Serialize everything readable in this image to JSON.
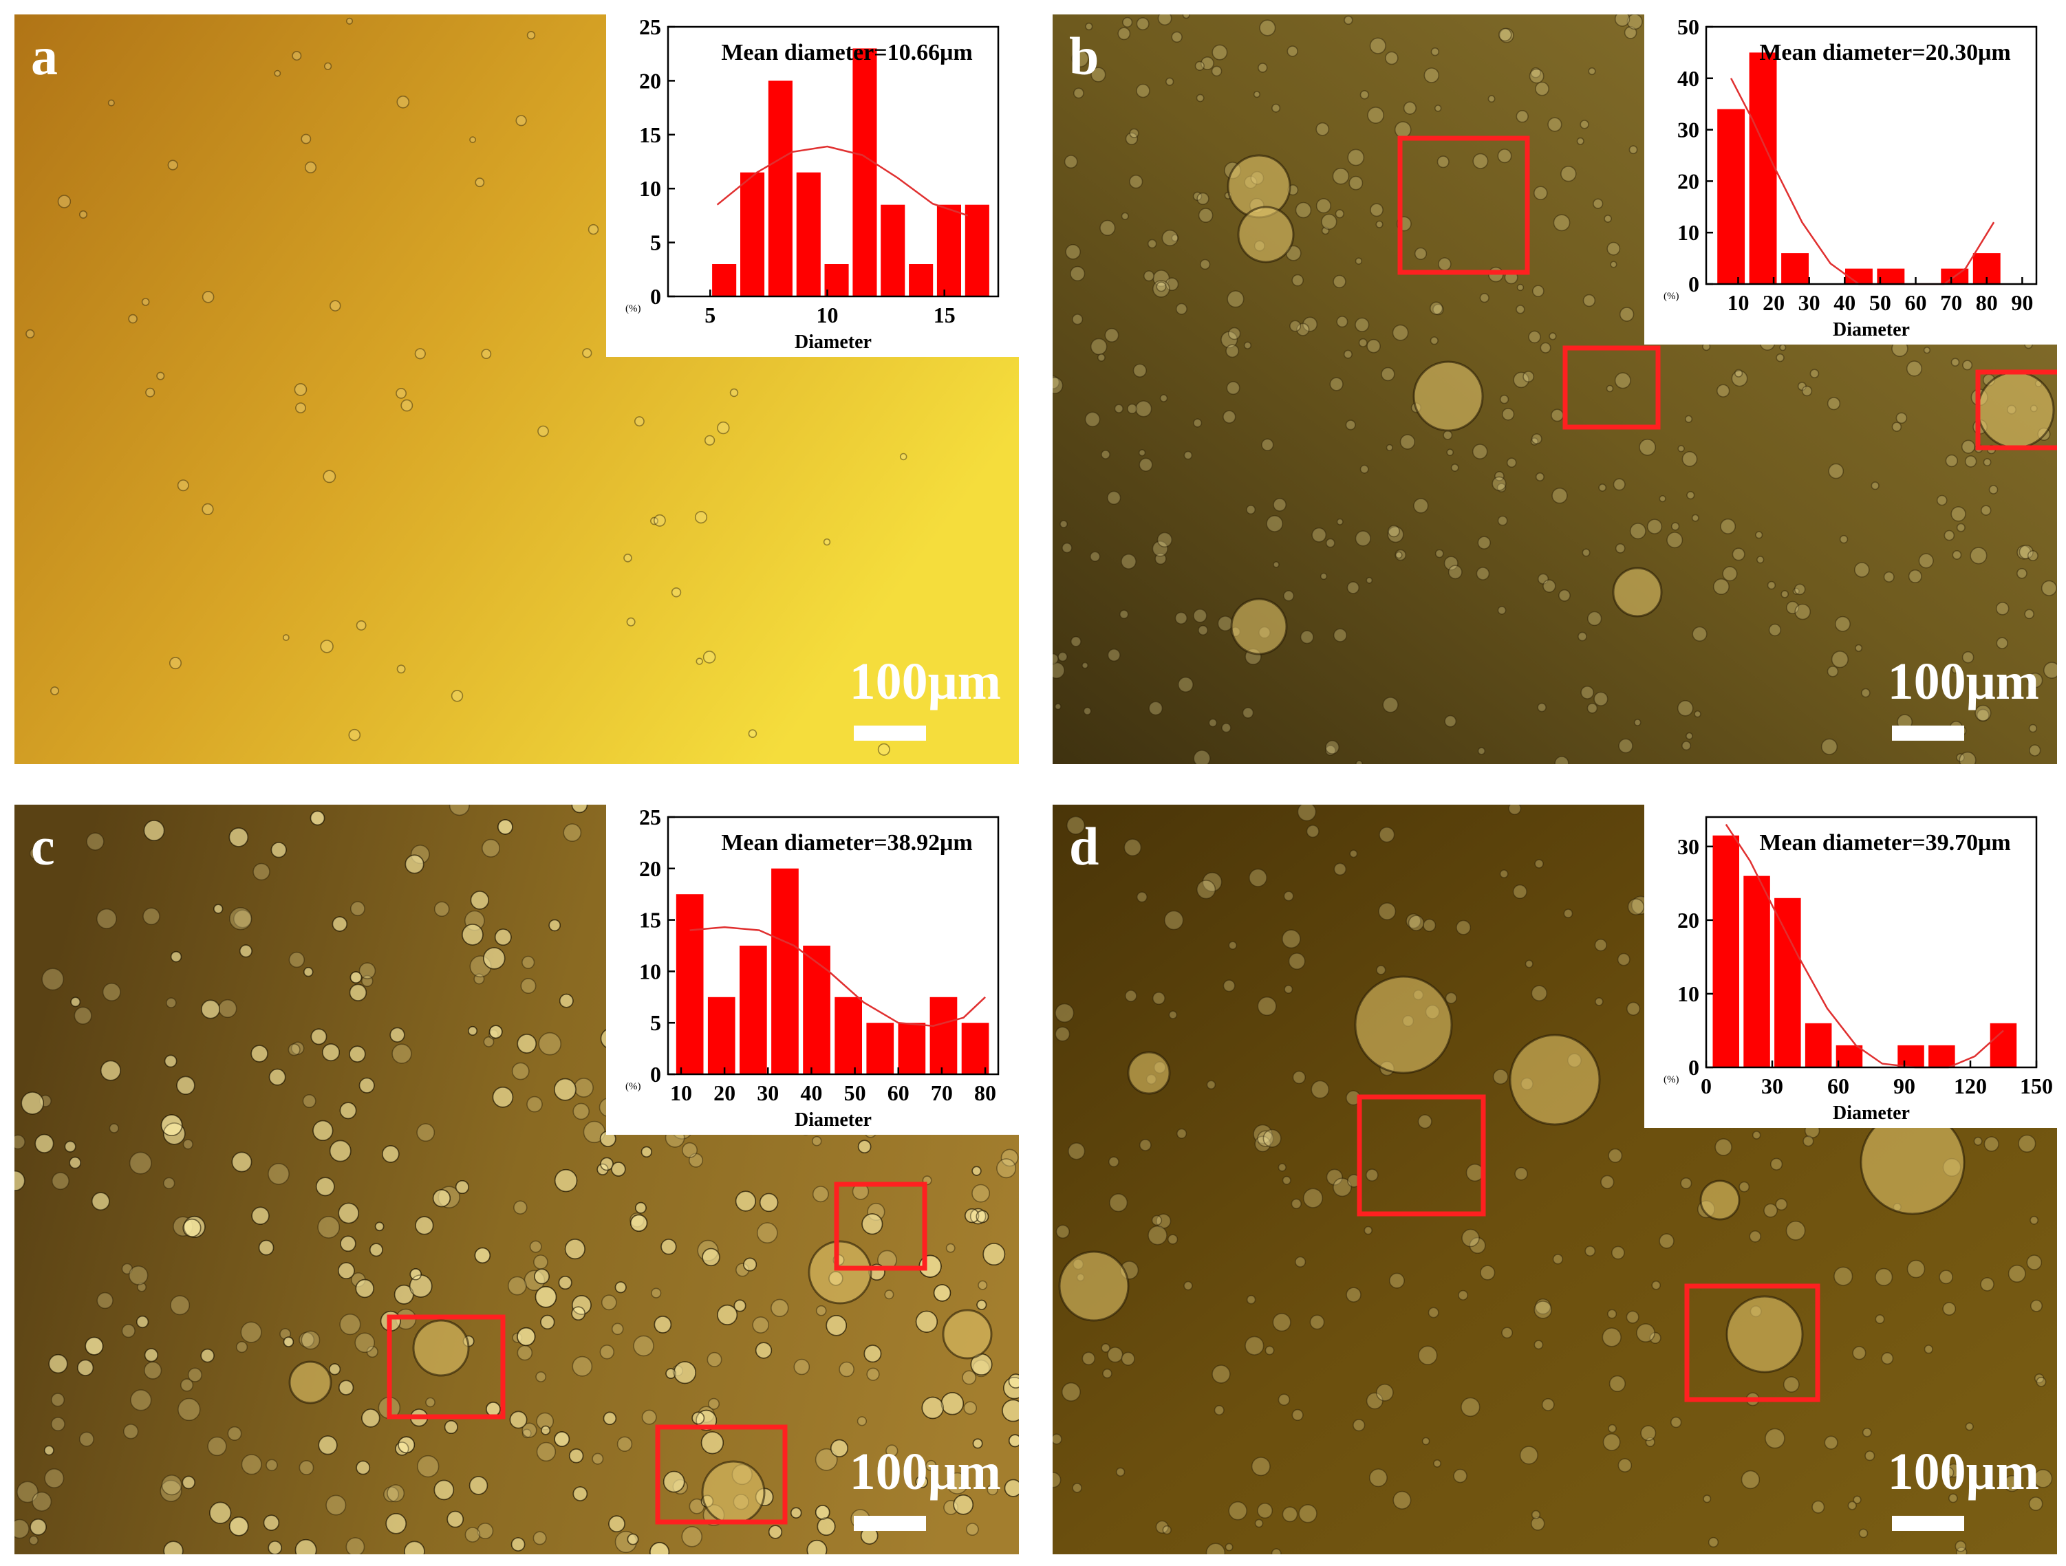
{
  "figure": {
    "scale_label": "100μm",
    "colors": {
      "bar": "#ff0000",
      "fit": "#e03030",
      "roi_box": "#ff2020",
      "label": "#ffffff"
    }
  },
  "panels": [
    {
      "id": "a",
      "label": "a",
      "background": [
        "#b07416",
        "#d8a526",
        "#f5dd3c"
      ],
      "roi_boxes": []
    },
    {
      "id": "b",
      "label": "b",
      "background": [
        "#3f3210",
        "#6e5a1e",
        "#8b7530"
      ],
      "roi_boxes": [
        "roi",
        "roi",
        "roi"
      ]
    },
    {
      "id": "c",
      "label": "c",
      "background": [
        "#5a4214",
        "#8a6a22",
        "#a37e2e"
      ],
      "roi_boxes": [
        "roi",
        "roi",
        "roi"
      ]
    },
    {
      "id": "d",
      "label": "d",
      "background": [
        "#4a3508",
        "#6b4f0e",
        "#7a5e14"
      ],
      "roi_boxes": [
        "roi",
        "roi"
      ]
    }
  ],
  "chart_data": [
    {
      "panel": "a",
      "type": "bar",
      "title": "Mean diameter=10.66μm",
      "xlabel": "Diameter",
      "ylabel_unit": "(%)",
      "x": [
        5.6,
        6.8,
        8.0,
        9.2,
        10.4,
        11.6,
        12.8,
        14.0,
        15.2,
        16.4
      ],
      "values": [
        3,
        11.5,
        20,
        11.5,
        3,
        23,
        8.5,
        3,
        8.5,
        8.5
      ],
      "xlim": [
        3.2,
        17.3
      ],
      "ylim": [
        0,
        25
      ],
      "xticks": [
        5,
        10,
        15
      ],
      "yticks": [
        0,
        5,
        10,
        15,
        20,
        25
      ],
      "fit": [
        [
          5.3,
          8.5
        ],
        [
          7,
          11.5
        ],
        [
          8.5,
          13.4
        ],
        [
          10,
          13.9
        ],
        [
          11.5,
          13.1
        ],
        [
          13,
          11
        ],
        [
          14.5,
          8.6
        ],
        [
          16,
          7.5
        ]
      ]
    },
    {
      "panel": "b",
      "type": "bar",
      "title": "Mean diameter=20.30μm",
      "xlabel": "Diameter",
      "ylabel_unit": "(%)",
      "x": [
        8,
        17,
        26,
        35,
        44,
        53,
        62,
        71,
        80
      ],
      "values": [
        34,
        45,
        6,
        0,
        3,
        3,
        0,
        3,
        6
      ],
      "xlim": [
        1,
        94
      ],
      "ylim": [
        0,
        50
      ],
      "xticks": [
        10,
        20,
        30,
        40,
        50,
        60,
        70,
        80,
        90
      ],
      "yticks": [
        0,
        10,
        20,
        30,
        40,
        50
      ],
      "fit": [
        [
          8,
          40
        ],
        [
          14,
          32
        ],
        [
          20,
          23
        ],
        [
          28,
          12
        ],
        [
          36,
          4
        ],
        [
          44,
          0
        ],
        [
          52,
          0
        ],
        [
          60,
          0
        ],
        [
          68,
          0
        ],
        [
          74,
          3
        ],
        [
          82,
          12
        ]
      ]
    },
    {
      "panel": "c",
      "type": "bar",
      "title": "Mean diameter=38.92μm",
      "xlabel": "Diameter",
      "ylabel_unit": "(%)",
      "x": [
        12,
        19.3,
        26.6,
        33.9,
        41.2,
        48.5,
        55.8,
        63.1,
        70.4,
        77.7
      ],
      "values": [
        17.5,
        7.5,
        12.5,
        20,
        12.5,
        7.5,
        5,
        5,
        7.5,
        5
      ],
      "xlim": [
        7,
        83
      ],
      "ylim": [
        0,
        25
      ],
      "xticks": [
        10,
        20,
        30,
        40,
        50,
        60,
        70,
        80
      ],
      "yticks": [
        0,
        5,
        10,
        15,
        20,
        25
      ],
      "fit": [
        [
          12,
          14
        ],
        [
          20,
          14.3
        ],
        [
          28,
          14
        ],
        [
          36,
          12.5
        ],
        [
          44,
          10
        ],
        [
          52,
          7
        ],
        [
          60,
          5
        ],
        [
          68,
          4.7
        ],
        [
          75,
          5.5
        ],
        [
          80,
          7.5
        ]
      ]
    },
    {
      "panel": "d",
      "type": "bar",
      "title": "Mean diameter=39.70μm",
      "xlabel": "Diameter",
      "ylabel_unit": "(%)",
      "x": [
        9,
        23,
        37,
        51,
        65,
        79,
        93,
        107,
        121,
        135
      ],
      "values": [
        31.5,
        26,
        23,
        6,
        3,
        0,
        3,
        3,
        0,
        6
      ],
      "xlim": [
        0,
        150
      ],
      "ylim": [
        0,
        34
      ],
      "xticks": [
        0,
        30,
        60,
        90,
        120,
        150
      ],
      "yticks": [
        0,
        10,
        20,
        30
      ],
      "fit": [
        [
          9,
          33
        ],
        [
          20,
          28
        ],
        [
          30,
          22
        ],
        [
          42,
          15
        ],
        [
          55,
          8
        ],
        [
          68,
          3
        ],
        [
          80,
          0.5
        ],
        [
          95,
          0
        ],
        [
          110,
          0
        ],
        [
          122,
          1.5
        ],
        [
          135,
          5
        ]
      ]
    }
  ]
}
